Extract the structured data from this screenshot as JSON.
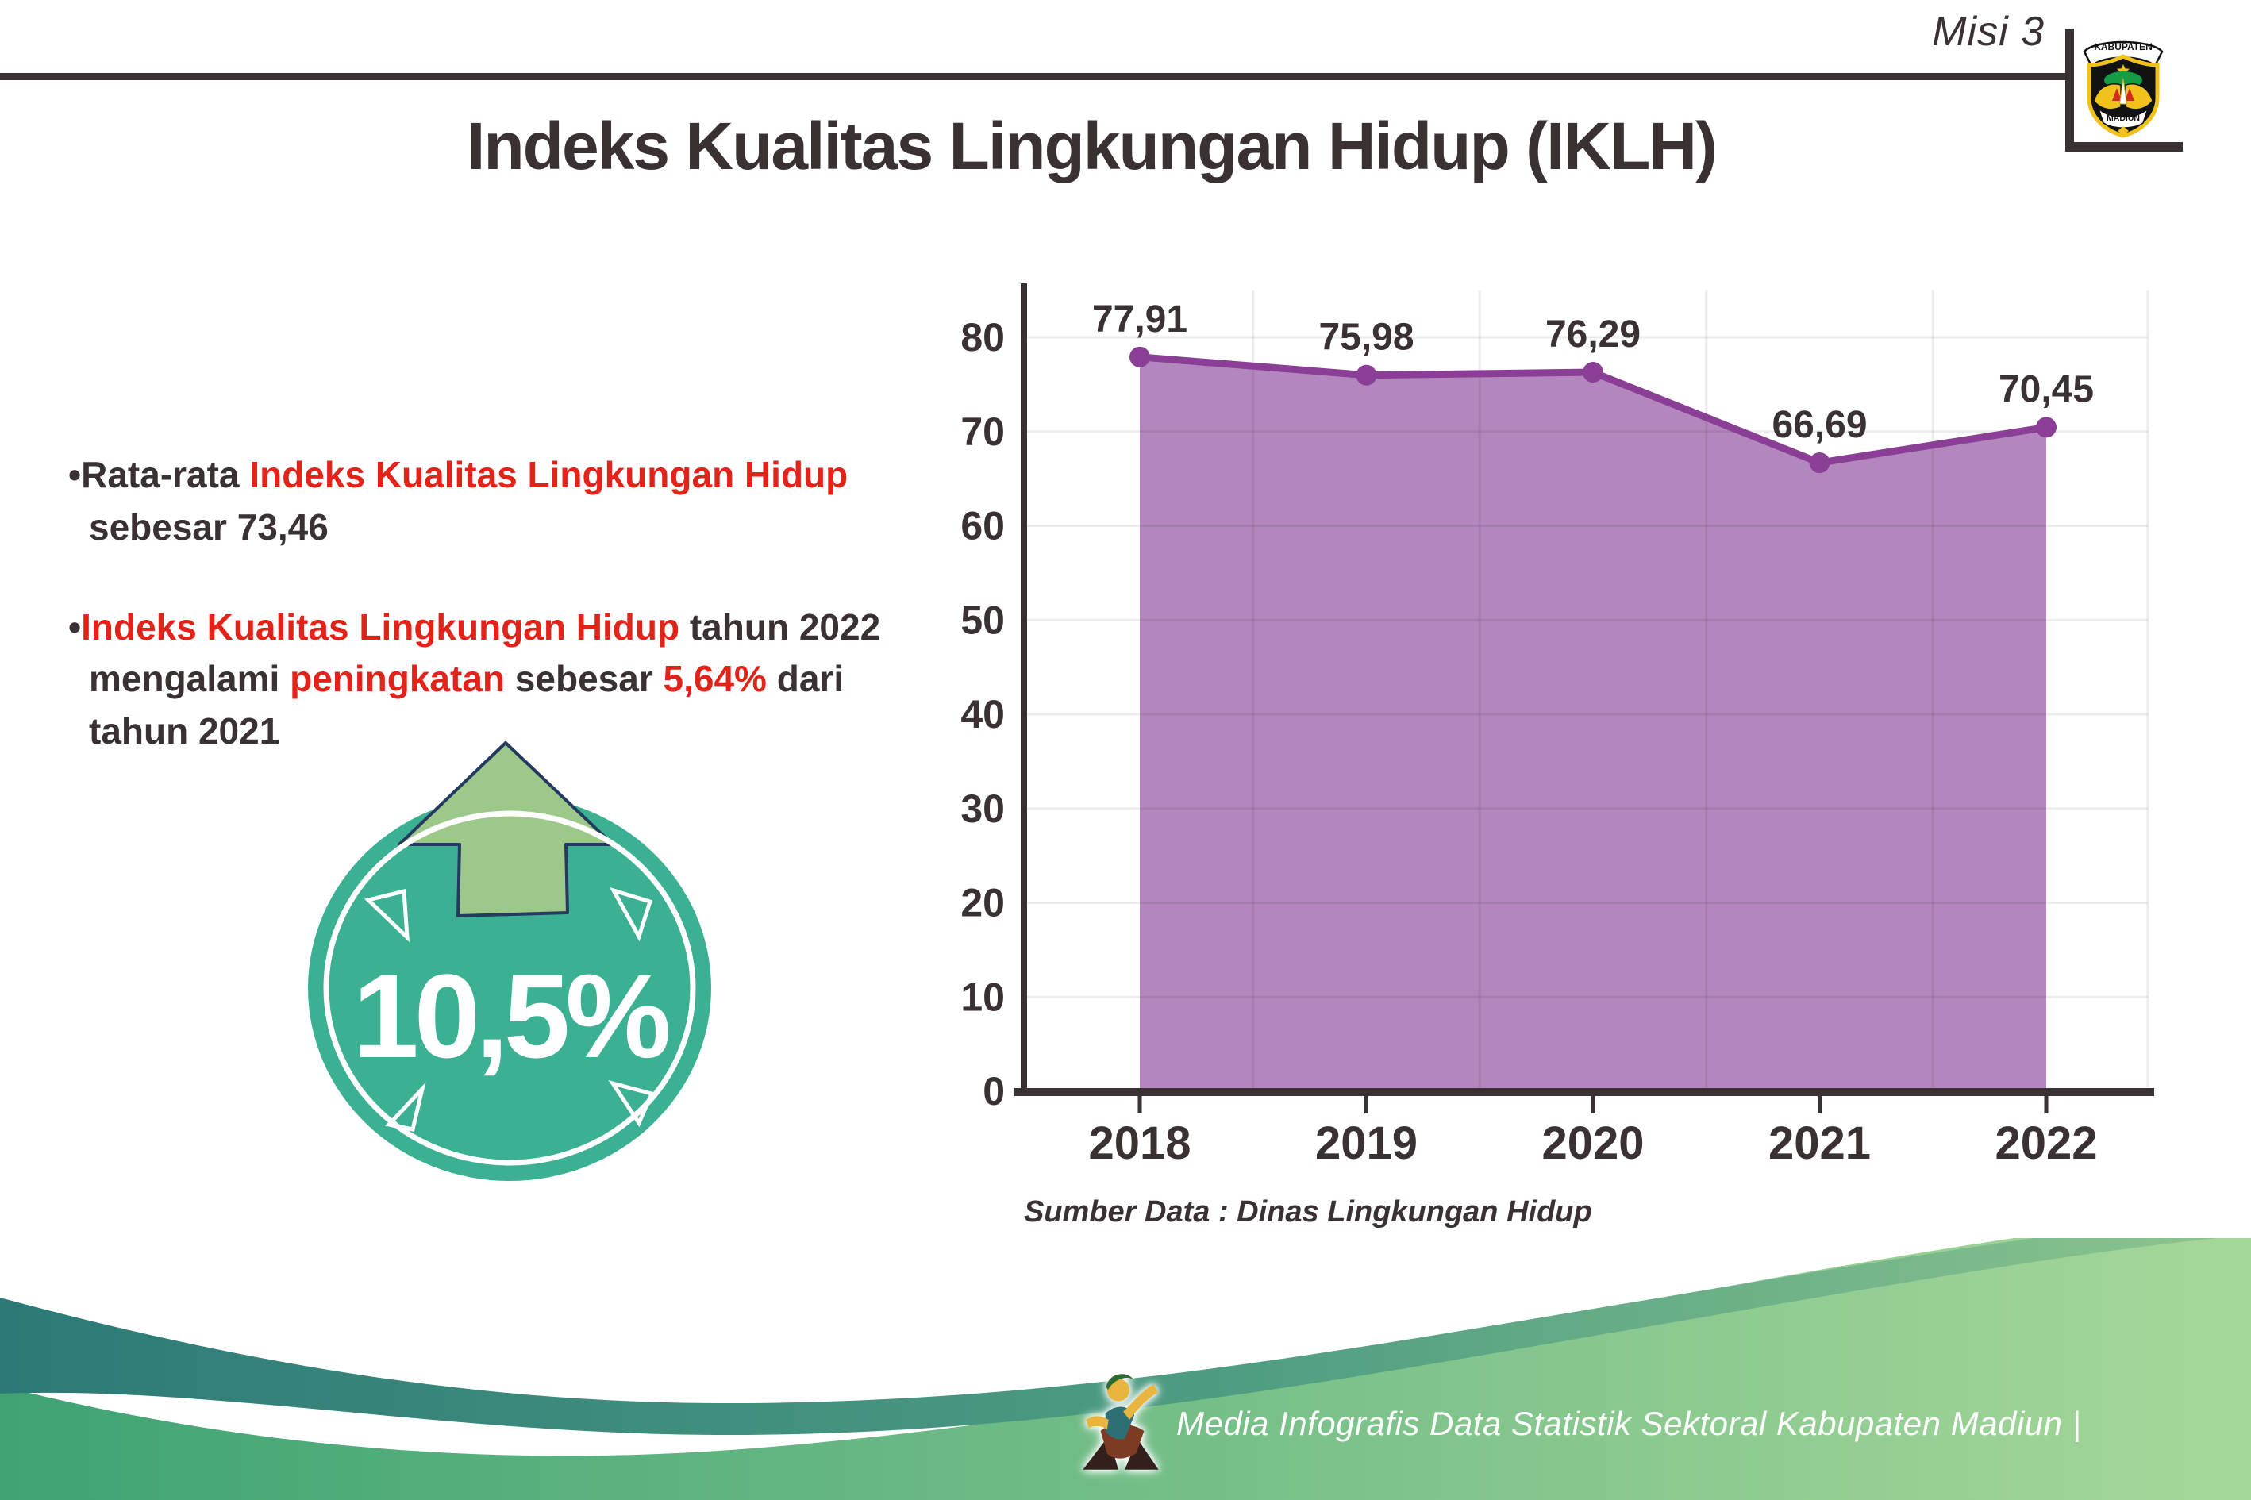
{
  "header": {
    "misi_label": "Misi 3"
  },
  "logo": {
    "top_text": "KABUPATEN",
    "bottom_text": "MADIUN"
  },
  "title": "Indeks Kualitas Lingkungan Hidup (IKLH)",
  "bullets": {
    "b1": {
      "marker": "•",
      "seg1": "Rata-rata ",
      "seg2": "Indeks Kualitas Lingkungan Hidup",
      "seg3": "sebesar 73,46"
    },
    "b2": {
      "marker": "•",
      "seg1": "Indeks Kualitas Lingkungan Hidup",
      "seg2": " tahun 2022",
      "seg3": "mengalami ",
      "seg4": "peningkatan",
      "seg5": " sebesar ",
      "seg6": "5,64%",
      "seg7": " dari",
      "seg8": "tahun 2021"
    }
  },
  "badge": {
    "value": "10,5%"
  },
  "chart_data": {
    "type": "area",
    "title": "Indeks Kualitas Lingkungan Hidup (IKLH) 2018-2022",
    "categories": [
      "2018",
      "2019",
      "2020",
      "2021",
      "2022"
    ],
    "series": [
      {
        "name": "IKLH",
        "values": [
          77.91,
          75.98,
          76.29,
          66.69,
          70.45
        ]
      }
    ],
    "value_labels": [
      "77,91",
      "75,98",
      "76,29",
      "66,69",
      "70,45"
    ],
    "xlabel": "",
    "ylabel": "",
    "ylim": [
      0,
      80
    ],
    "ytick_step": 10,
    "yticks": [
      "0",
      "10",
      "20",
      "30",
      "40",
      "50",
      "60",
      "70",
      "80"
    ],
    "grid": true,
    "legend": "none",
    "area_color": "#b387bd",
    "line_color": "#8a3e96"
  },
  "source_note": "Sumber Data : Dinas Lingkungan Hidup",
  "footer": {
    "caption": "Media Infografis Data Statistik Sektoral Kabupaten Madiun |"
  },
  "colors": {
    "dark_text": "#3a3133",
    "accent_red": "#e2231a",
    "badge_teal": "#3bb093",
    "arrow_green": "#9cc889",
    "arrow_outline": "#243a5e",
    "chart_area": "#b387bd",
    "chart_line": "#8a3e96",
    "footer_teal": "#2c7a77",
    "footer_green": "#a6d79a"
  }
}
